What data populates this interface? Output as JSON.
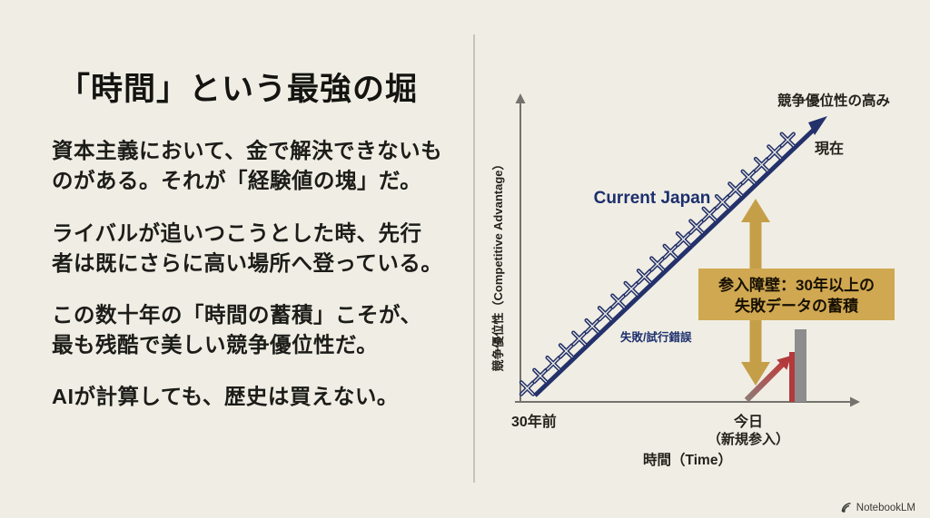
{
  "left_panel": {
    "title": "「時間」という最強の堀",
    "paragraphs": [
      "資本主義において、金で解決できないも\nのがある。それが「経験値の塊」だ。",
      "ライバルが追いつこうとした時、先行\n者は既にさらに高い場所へ登っている。",
      "この数十年の「時間の蓄積」こそが、\n最も残酷で美しい競争優位性だ。",
      "AIが計算しても、歴史は買えない。"
    ]
  },
  "chart": {
    "y_axis_label": "競争優位性（Competitive Advantage）",
    "x_axis_label": "時間（Time）",
    "top_right_label": "競争優位性の高み",
    "now_label": "現在",
    "line_label": "Current Japan",
    "failures_label": "失敗/試行錯誤",
    "barrier_box_line1": "参入障壁：30年以上の",
    "barrier_box_line2": "失敗データの蓄積",
    "x_tick_left": "30年前",
    "x_tick_right_line1": "今日",
    "x_tick_right_line2": "（新規参入）"
  },
  "watermark": {
    "label": "NotebookLM"
  },
  "colors": {
    "background": "#f0eee4",
    "navy_line": "#24316b",
    "gold_arrow": "#c59f48",
    "gold_box": "#d0a851",
    "red_arrow": "#b23a3c",
    "gray_wall": "#8d8d8d",
    "axis_gray": "#73726d"
  },
  "chart_data": {
    "type": "line",
    "title": "",
    "xlabel": "時間（Time）",
    "ylabel": "競争優位性（Competitive Advantage）",
    "x_ticks": [
      "30年前",
      "今日（新規参入）"
    ],
    "grid": false,
    "legend": false,
    "series": [
      {
        "name": "Current Japan",
        "x": [
          0,
          30
        ],
        "y": [
          0,
          100
        ],
        "units": "conceptual (years vs relative advantage)",
        "color": "#24316b",
        "marker": "x",
        "marker_count": 21,
        "marker_label": "失敗/試行錯誤"
      }
    ],
    "annotations": [
      {
        "text": "競争優位性の高み",
        "position": "top-right above line end"
      },
      {
        "text": "現在",
        "position": "right of line arrowhead"
      },
      {
        "text": "参入障壁：30年以上の失敗データの蓄積",
        "type": "gold highlight box over vertical double arrow",
        "color": "#d0a851"
      },
      {
        "text": "今日（新規参入）",
        "type": "x-axis tick for new entrant; short red arrow rises from axis and is blocked by a gray wall"
      },
      {
        "text": "30年前",
        "type": "x-axis tick at origin"
      }
    ]
  }
}
